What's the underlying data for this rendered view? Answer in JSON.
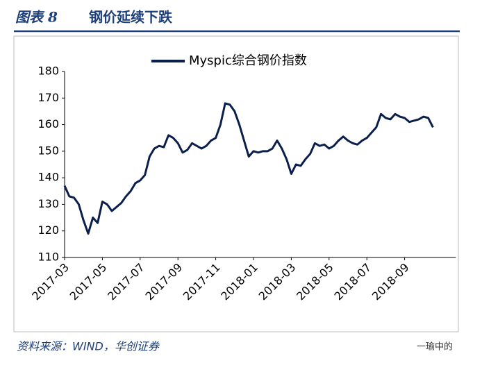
{
  "header": {
    "figure": "图表 8",
    "title": "钢价延续下跌"
  },
  "source": "资料来源：WIND，华创证券",
  "watermark": "一瑜中的",
  "chart_data": {
    "type": "line",
    "categories": [
      "2017-03",
      null,
      null,
      null,
      null,
      null,
      null,
      null,
      "2017-05",
      null,
      null,
      null,
      null,
      null,
      null,
      null,
      "2017-07",
      null,
      null,
      null,
      null,
      null,
      null,
      null,
      "2017-09",
      null,
      null,
      null,
      null,
      null,
      null,
      null,
      "2017-11",
      null,
      null,
      null,
      null,
      null,
      null,
      null,
      "2018-01",
      null,
      null,
      null,
      null,
      null,
      null,
      null,
      "2018-03",
      null,
      null,
      null,
      null,
      null,
      null,
      null,
      "2018-05",
      null,
      null,
      null,
      null,
      null,
      null,
      null,
      "2018-07",
      null,
      null,
      null,
      null,
      null,
      null,
      null,
      "2018-09",
      null,
      null,
      null,
      null,
      null,
      null
    ],
    "series": [
      {
        "name": "Myspic综合钢价指数",
        "color": "#0b1f4d",
        "values": [
          137,
          133,
          132.5,
          130,
          124,
          119,
          125,
          123,
          131,
          130,
          127.5,
          129,
          130.5,
          133,
          135,
          138,
          139,
          141,
          148,
          151,
          152,
          151.5,
          156,
          155,
          153,
          149.5,
          150.5,
          153,
          152,
          151,
          152,
          154,
          155,
          160,
          168,
          167.5,
          165,
          160,
          154,
          148,
          150,
          149.5,
          150,
          150,
          151,
          154,
          151,
          147,
          141.5,
          145,
          144.5,
          147,
          149,
          153,
          152,
          152.5,
          151,
          152,
          154,
          155.5,
          154,
          153,
          152.5,
          154,
          155,
          157,
          159,
          164,
          162.5,
          162,
          164,
          163,
          162.5,
          161,
          161.5,
          162,
          163,
          162.5,
          159
        ]
      }
    ],
    "ylim": [
      110,
      180
    ],
    "yticks": [
      110,
      120,
      130,
      140,
      150,
      160,
      170,
      180
    ],
    "grid": false,
    "legend": "top"
  }
}
